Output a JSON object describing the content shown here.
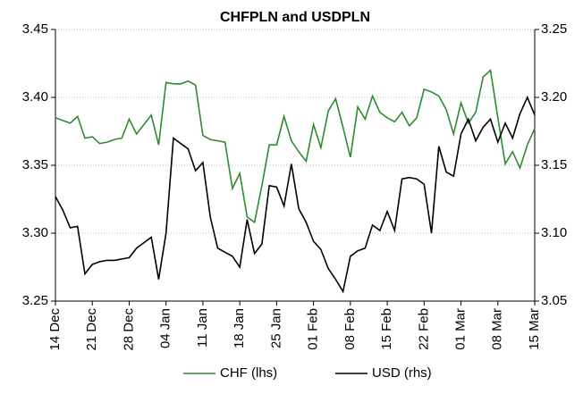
{
  "chart_data": {
    "type": "line",
    "title": "CHFPLN and USDPLN",
    "categories": [
      "14 Dec",
      null,
      null,
      null,
      null,
      "21 Dec",
      null,
      null,
      null,
      null,
      "28 Dec",
      null,
      null,
      null,
      null,
      "04 Jan",
      null,
      null,
      null,
      null,
      "11 Jan",
      null,
      null,
      null,
      null,
      "18 Jan",
      null,
      null,
      null,
      null,
      "25 Jan",
      null,
      null,
      null,
      null,
      "01 Feb",
      null,
      null,
      null,
      null,
      "08 Feb",
      null,
      null,
      null,
      null,
      "15 Feb",
      null,
      null,
      null,
      null,
      "22 Feb",
      null,
      null,
      null,
      null,
      "01 Mar",
      null,
      null,
      null,
      null,
      "08 Mar",
      null,
      null,
      null,
      null,
      "15 Mar"
    ],
    "series": [
      {
        "name": "CHF (lhs)",
        "color": "#2e8b2e",
        "axis": "y",
        "values": [
          3.385,
          3.383,
          3.381,
          3.386,
          3.37,
          3.371,
          3.366,
          3.367,
          3.369,
          3.37,
          3.384,
          3.373,
          3.38,
          3.387,
          3.365,
          3.411,
          3.41,
          3.41,
          3.412,
          3.409,
          3.372,
          3.369,
          3.368,
          3.367,
          3.333,
          3.344,
          3.312,
          3.308,
          3.335,
          3.365,
          3.365,
          3.386,
          3.368,
          3.36,
          3.353,
          3.38,
          3.363,
          3.39,
          3.399,
          3.378,
          3.356,
          3.393,
          3.384,
          3.401,
          3.389,
          3.385,
          3.382,
          3.389,
          3.379,
          3.385,
          3.406,
          3.404,
          3.401,
          3.391,
          3.373,
          3.396,
          3.381,
          3.389,
          3.415,
          3.42,
          3.385,
          3.351,
          3.36,
          3.348,
          3.365,
          3.377
        ]
      },
      {
        "name": "USD (rhs)",
        "color": "#000000",
        "axis": "y2",
        "values": [
          3.127,
          3.117,
          3.104,
          3.105,
          3.07,
          3.077,
          3.079,
          3.08,
          3.08,
          3.081,
          3.082,
          3.089,
          3.093,
          3.097,
          3.066,
          3.1,
          3.17,
          3.166,
          3.162,
          3.146,
          3.152,
          3.112,
          3.089,
          3.086,
          3.083,
          3.075,
          3.11,
          3.085,
          3.092,
          3.135,
          3.134,
          3.12,
          3.151,
          3.118,
          3.108,
          3.094,
          3.088,
          3.074,
          3.066,
          3.057,
          3.083,
          3.087,
          3.089,
          3.106,
          3.102,
          3.116,
          3.102,
          3.14,
          3.141,
          3.14,
          3.136,
          3.1,
          3.164,
          3.145,
          3.142,
          3.173,
          3.184,
          3.168,
          3.178,
          3.184,
          3.167,
          3.181,
          3.17,
          3.188,
          3.2,
          3.187
        ]
      }
    ],
    "ylim": [
      3.25,
      3.45
    ],
    "yticks": [
      3.25,
      {
        "value": 3.3,
        "label": "3.30"
      },
      3.35,
      {
        "value": 3.4,
        "label": "3.40"
      },
      3.45
    ],
    "y2lim": [
      3.05,
      3.25
    ],
    "y2ticks": [
      3.05,
      {
        "value": 3.1,
        "label": "3.10"
      },
      3.15,
      {
        "value": 3.2,
        "label": "3.20"
      },
      3.25
    ],
    "grid": true,
    "legend": "bottom"
  }
}
